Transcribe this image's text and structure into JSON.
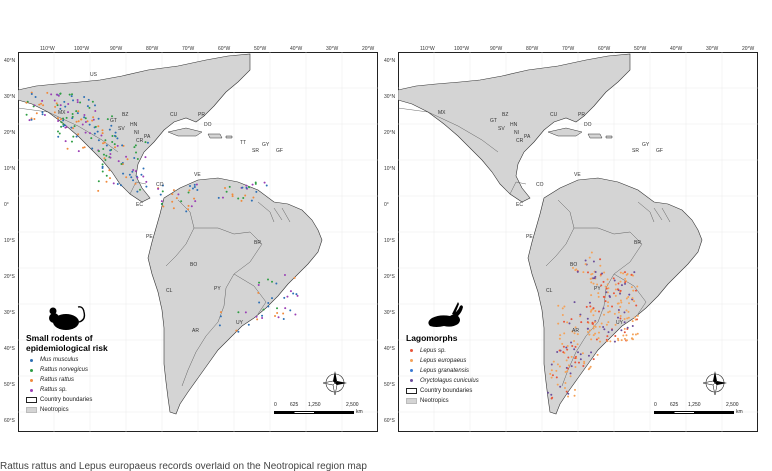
{
  "maps": [
    {
      "id": "left",
      "longitudes": [
        "110°W",
        "100°W",
        "90°W",
        "80°W",
        "70°W",
        "60°W",
        "50°W",
        "40°W",
        "30°W",
        "20°W"
      ],
      "latitudes": [
        "40°N",
        "30°N",
        "20°N",
        "10°N",
        "0°",
        "10°S",
        "20°S",
        "30°S",
        "40°S",
        "50°S",
        "60°S"
      ],
      "countries": [
        "US",
        "MX",
        "BZ",
        "GT",
        "SV",
        "HN",
        "NI",
        "CR",
        "PA",
        "CU",
        "DO",
        "PR",
        "TT",
        "GY",
        "SR",
        "GF",
        "CO",
        "VE",
        "EC",
        "PE",
        "BR",
        "BO",
        "PY",
        "CL",
        "AR",
        "UY"
      ],
      "legend": {
        "title_line1": "Small rodents of",
        "title_line2": "epidemiological risk",
        "species": [
          {
            "label": "Mus musculus",
            "color": "#2c6fb5"
          },
          {
            "label": "Rattus norvegicus",
            "color": "#2f9e44"
          },
          {
            "label": "Rattus rattus",
            "color": "#f08a3c"
          },
          {
            "label": "Rattus sp.",
            "color": "#9b3fb5"
          }
        ],
        "boundaries_label": "Country boundaries",
        "neotropics_label": "Neotropics"
      },
      "scale": {
        "ticks": [
          "0",
          "625",
          "1,250",
          "2,500"
        ],
        "unit": "km"
      }
    },
    {
      "id": "right",
      "longitudes": [
        "110°W",
        "100°W",
        "90°W",
        "80°W",
        "70°W",
        "60°W",
        "50°W",
        "40°W",
        "30°W",
        "20°W"
      ],
      "latitudes": [
        "40°N",
        "30°N",
        "20°N",
        "10°N",
        "0°",
        "10°S",
        "20°S",
        "30°S",
        "40°S",
        "50°S",
        "60°S"
      ],
      "countries": [
        "MX",
        "BZ",
        "GT",
        "SV",
        "HN",
        "NI",
        "CR",
        "PA",
        "CU",
        "DO",
        "PR",
        "GY",
        "SR",
        "GF",
        "CO",
        "VE",
        "EC",
        "PE",
        "BR",
        "BO",
        "PY",
        "CL",
        "AR",
        "UY"
      ],
      "legend": {
        "title_line1": "Lagomorphs",
        "title_line2": "",
        "species": [
          {
            "label": "Lepus sp.",
            "color": "#e8553a"
          },
          {
            "label": "Lepus europaeus",
            "color": "#f4a259"
          },
          {
            "label": "Lepus granatensis",
            "color": "#3a7bd5"
          },
          {
            "label": "Oryctolagus cuniculus",
            "color": "#6b4e9b"
          }
        ],
        "boundaries_label": "Country boundaries",
        "neotropics_label": "Neotropics"
      },
      "scale": {
        "ticks": [
          "0",
          "625",
          "1,250",
          "2,500"
        ],
        "unit": "km"
      }
    }
  ],
  "caption": "Rattus rattus and Lepus europaeus records overlaid on the Neotropical region map"
}
